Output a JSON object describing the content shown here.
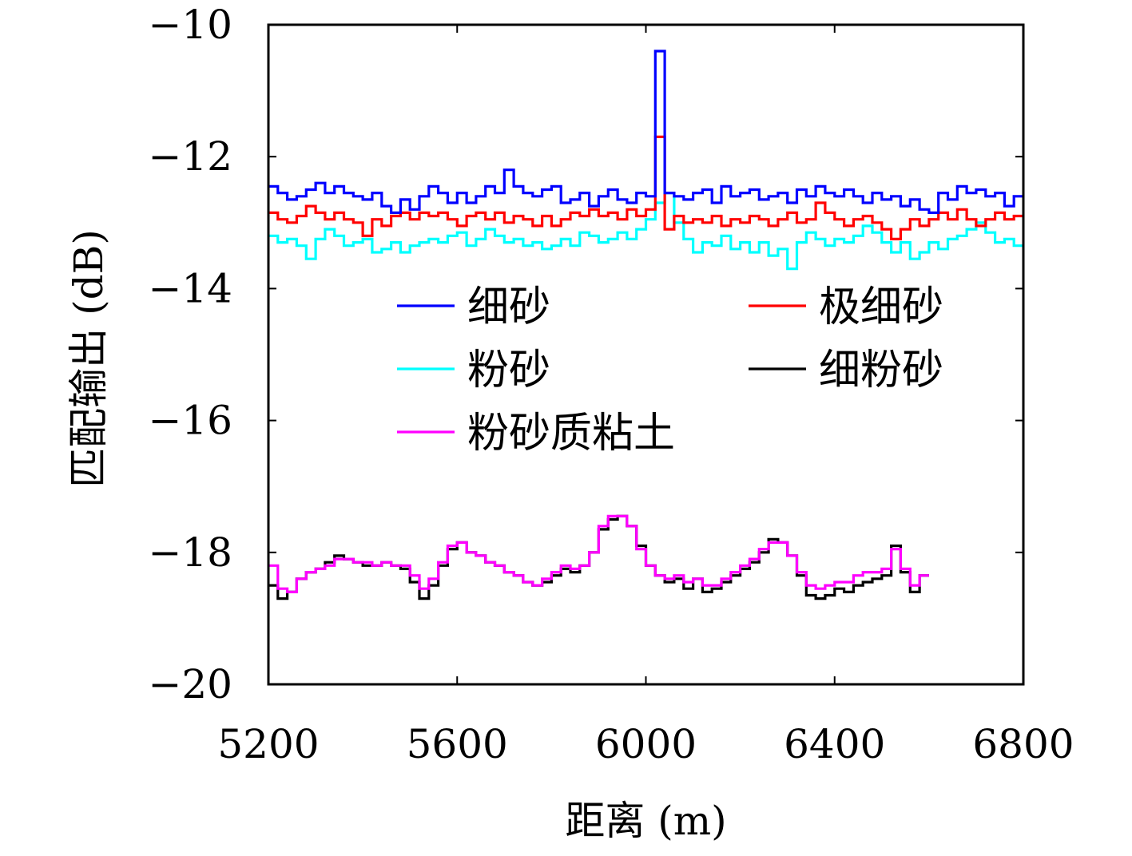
{
  "chart_data": {
    "type": "line",
    "xlabel": "距离 (m)",
    "ylabel": "匹配输出 (dB)",
    "xlim": [
      5200,
      6800
    ],
    "ylim": [
      -20,
      -10
    ],
    "xticks": [
      5200,
      5600,
      6000,
      6400,
      6800
    ],
    "yticks": [
      -10,
      -12,
      -14,
      -16,
      -18,
      -20
    ],
    "x_tick_labels": [
      "5200",
      "5600",
      "6000",
      "6400",
      "6800"
    ],
    "y_tick_labels": [
      "−10",
      "−12",
      "−14",
      "−16",
      "−18",
      "−20"
    ],
    "grid": false,
    "legend_position": "center",
    "step": 20,
    "x_start": 5200,
    "series": [
      {
        "name": "细砂",
        "color": "#0000ff",
        "values": [
          -12.45,
          -12.55,
          -12.65,
          -12.6,
          -12.5,
          -12.4,
          -12.55,
          -12.45,
          -12.55,
          -12.6,
          -12.65,
          -12.55,
          -12.75,
          -12.85,
          -12.65,
          -12.8,
          -12.6,
          -12.45,
          -12.55,
          -12.7,
          -12.55,
          -12.7,
          -12.6,
          -12.45,
          -12.55,
          -12.2,
          -12.45,
          -12.55,
          -12.6,
          -12.5,
          -12.45,
          -12.7,
          -12.65,
          -12.55,
          -12.75,
          -12.6,
          -12.5,
          -12.65,
          -12.7,
          -12.55,
          -12.6,
          -10.4,
          -12.55,
          -12.6,
          -12.65,
          -12.55,
          -12.5,
          -12.7,
          -12.45,
          -12.6,
          -12.55,
          -12.5,
          -12.65,
          -12.6,
          -12.55,
          -12.7,
          -12.5,
          -12.6,
          -12.45,
          -12.55,
          -12.6,
          -12.5,
          -12.6,
          -12.7,
          -12.55,
          -12.65,
          -12.6,
          -12.75,
          -12.65,
          -12.8,
          -12.85,
          -12.55,
          -12.65,
          -12.45,
          -12.55,
          -12.5,
          -12.6,
          -12.55,
          -12.75,
          -12.6,
          -12.65
        ]
      },
      {
        "name": "极细砂",
        "color": "#ff0000",
        "values": [
          -12.85,
          -12.95,
          -13.0,
          -12.9,
          -12.75,
          -12.85,
          -12.95,
          -12.85,
          -12.95,
          -13.0,
          -13.2,
          -12.95,
          -13.05,
          -12.9,
          -12.85,
          -12.95,
          -12.85,
          -12.9,
          -12.85,
          -12.95,
          -13.05,
          -12.9,
          -12.85,
          -12.95,
          -12.85,
          -13.0,
          -12.9,
          -12.95,
          -13.05,
          -12.9,
          -13.05,
          -12.95,
          -12.85,
          -12.9,
          -12.8,
          -12.9,
          -12.85,
          -12.95,
          -12.8,
          -12.9,
          -12.8,
          -11.7,
          -13.1,
          -12.9,
          -13.0,
          -12.95,
          -13.0,
          -12.9,
          -13.05,
          -12.95,
          -13.0,
          -12.9,
          -12.95,
          -13.05,
          -12.95,
          -12.85,
          -13.0,
          -12.95,
          -12.7,
          -12.85,
          -12.95,
          -13.05,
          -12.95,
          -12.9,
          -13.0,
          -13.1,
          -13.25,
          -13.1,
          -12.95,
          -13.05,
          -12.95,
          -12.85,
          -12.95,
          -12.8,
          -12.95,
          -13.05,
          -12.95,
          -12.85,
          -12.95,
          -12.9,
          -12.85
        ]
      },
      {
        "name": "粉砂",
        "color": "#00ffff",
        "values": [
          -13.2,
          -13.3,
          -13.25,
          -13.35,
          -13.55,
          -13.25,
          -13.1,
          -13.2,
          -13.35,
          -13.3,
          -13.25,
          -13.45,
          -13.4,
          -13.3,
          -13.45,
          -13.35,
          -13.3,
          -13.25,
          -13.3,
          -13.2,
          -13.15,
          -13.35,
          -13.25,
          -13.1,
          -13.2,
          -13.3,
          -13.25,
          -13.35,
          -13.3,
          -13.4,
          -13.35,
          -13.25,
          -13.35,
          -13.15,
          -13.2,
          -13.3,
          -13.25,
          -13.15,
          -13.25,
          -13.1,
          -12.95,
          -12.7,
          -12.55,
          -13.0,
          -13.25,
          -13.45,
          -13.3,
          -13.35,
          -13.2,
          -13.4,
          -13.3,
          -13.45,
          -13.3,
          -13.5,
          -13.4,
          -13.7,
          -13.3,
          -13.15,
          -13.25,
          -13.35,
          -13.25,
          -13.3,
          -13.2,
          -13.05,
          -13.15,
          -13.3,
          -13.45,
          -13.3,
          -13.55,
          -13.45,
          -13.3,
          -13.4,
          -13.25,
          -13.2,
          -13.1,
          -13.0,
          -13.15,
          -13.3,
          -13.25,
          -13.35,
          -13.45
        ]
      },
      {
        "name": "细粉砂",
        "color": "#000000",
        "values": [
          -18.5,
          -18.7,
          -18.6,
          -18.4,
          -18.3,
          -18.25,
          -18.15,
          -18.05,
          -18.1,
          -18.15,
          -18.2,
          -18.2,
          -18.15,
          -18.2,
          -18.25,
          -18.45,
          -18.7,
          -18.5,
          -18.2,
          -17.95,
          -17.85,
          -18.0,
          -18.05,
          -18.15,
          -18.2,
          -18.3,
          -18.35,
          -18.45,
          -18.5,
          -18.45,
          -18.35,
          -18.25,
          -18.3,
          -18.2,
          -18.0,
          -17.65,
          -17.5,
          -17.45,
          -17.6,
          -17.9,
          -18.2,
          -18.35,
          -18.45,
          -18.4,
          -18.55,
          -18.4,
          -18.6,
          -18.55,
          -18.45,
          -18.35,
          -18.25,
          -18.15,
          -18.0,
          -17.8,
          -17.85,
          -18.05,
          -18.35,
          -18.65,
          -18.7,
          -18.65,
          -18.55,
          -18.6,
          -18.5,
          -18.45,
          -18.4,
          -18.35,
          -17.9,
          -18.3,
          -18.6,
          -18.35
        ]
      },
      {
        "name": "粉砂质粘土",
        "color": "#ff00ff",
        "values": [
          -18.2,
          -18.55,
          -18.6,
          -18.4,
          -18.3,
          -18.25,
          -18.2,
          -18.1,
          -18.1,
          -18.15,
          -18.15,
          -18.2,
          -18.15,
          -18.2,
          -18.2,
          -18.35,
          -18.55,
          -18.4,
          -18.15,
          -17.9,
          -17.85,
          -18.0,
          -18.05,
          -18.15,
          -18.2,
          -18.3,
          -18.35,
          -18.45,
          -18.5,
          -18.4,
          -18.3,
          -18.2,
          -18.25,
          -18.2,
          -18.0,
          -17.6,
          -17.45,
          -17.45,
          -17.6,
          -17.95,
          -18.2,
          -18.35,
          -18.4,
          -18.35,
          -18.45,
          -18.4,
          -18.5,
          -18.5,
          -18.4,
          -18.3,
          -18.2,
          -18.1,
          -17.95,
          -17.85,
          -17.85,
          -18.05,
          -18.3,
          -18.5,
          -18.55,
          -18.5,
          -18.45,
          -18.45,
          -18.35,
          -18.3,
          -18.3,
          -18.25,
          -17.95,
          -18.25,
          -18.5,
          -18.35
        ]
      }
    ]
  }
}
